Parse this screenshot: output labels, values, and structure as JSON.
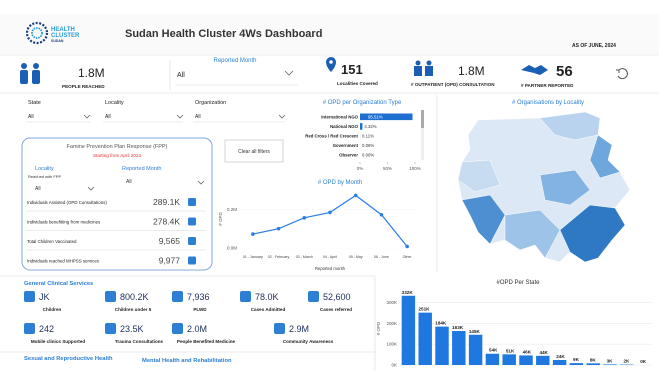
{
  "header": {
    "logo": [
      "HEALTH",
      "CLUSTER",
      "SUDAN"
    ],
    "title": "Sudan Health Cluster 4Ws Dashboard",
    "as_of": "AS OF JUNE, 2024"
  },
  "kpis": {
    "people_reached": {
      "value": "1.8M",
      "label": "PEOPLE REACHED"
    },
    "month_filter": {
      "label": "Reported Month",
      "value": "All"
    },
    "localities": {
      "value": "151",
      "label": "Localities Covered"
    },
    "opd": {
      "value": "1.8M",
      "label": "# OUTPATIENT (OPD) CONSULTATION"
    },
    "partners": {
      "value": "56",
      "label": "# PARTNER REPORTED"
    }
  },
  "filters": [
    {
      "label": "State",
      "value": "All"
    },
    {
      "label": "Locality",
      "value": "All"
    },
    {
      "label": "Organization",
      "value": "All"
    }
  ],
  "map": {
    "title": "# Organisations by Locality"
  },
  "clear_button": "Clear all filters",
  "fpp": {
    "title": "Famine Prevention Plan Response (FPP)",
    "subtitle": "Starting from April 2024",
    "locality_label": "Locality",
    "locality_sub": "Reached with FPP",
    "locality_value": "All",
    "month_label": "Reported Month",
    "month_value": "All",
    "rows": [
      {
        "label": "Individuals Assisted (OPD Consultations)",
        "value": "289.1K"
      },
      {
        "label": "Individuals benefitting from medicines",
        "value": "278.4K"
      },
      {
        "label": "Total Children Vaccinated",
        "value": "9,565"
      },
      {
        "label": "Individuals reached MHPSS services",
        "value": "9,977"
      }
    ]
  },
  "services": {
    "title": "General Clinical Services",
    "items": [
      {
        "value": "JK",
        "label": "Children"
      },
      {
        "value": "800.2K",
        "label": "Children under 5"
      },
      {
        "value": "7,936",
        "label": "PLWD"
      },
      {
        "value": "78.0K",
        "label": "Cases Admitted"
      },
      {
        "value": "52,600",
        "label": "Cases referred"
      },
      {
        "value": "242",
        "label": "Mobile clinics Supported"
      },
      {
        "value": "23.5K",
        "label": "Trauma Consultations"
      },
      {
        "value": "2.0M",
        "label": "People Benefited Medicine"
      },
      {
        "value": "2.9M",
        "label": "Community Awareness"
      }
    ]
  },
  "sections": [
    "Sexual and Reproductive Health",
    "Mental Health and Rehabilitation"
  ],
  "chart_data": [
    {
      "type": "bar",
      "orientation": "horizontal",
      "title": "# OPD per Organization Type",
      "categories": [
        "International NGO",
        "National NGO",
        "Red Cross / Red Crescent",
        "Government",
        "Observer"
      ],
      "values": [
        95.51,
        4.32,
        0.11,
        0.06,
        0
      ],
      "value_labels": [
        "95.51%",
        "4.32%",
        "0.11%",
        "0.06%",
        "0.00%"
      ],
      "color": "#1f6fd1",
      "xlim": [
        0,
        100
      ],
      "xticks": [
        {
          "value": 0,
          "label": "0%"
        },
        {
          "value": 50,
          "label": "50%"
        },
        {
          "value": 100,
          "label": "100%"
        }
      ]
    },
    {
      "type": "line",
      "title": "# OPD by Month",
      "categories": [
        "01 - January",
        "02 - February",
        "03 - March",
        "04 - April",
        "05 - May",
        "06 - June",
        "Other"
      ],
      "values": [
        72000,
        100000,
        156000,
        184000,
        272000,
        172000,
        8000
      ],
      "color": "#2b7de9",
      "ylabel": "# OPD",
      "xlabel": "Reported month",
      "ylim": [
        0,
        300000
      ],
      "yticks": [
        {
          "value": 0,
          "label": "0.0M"
        },
        {
          "value": 200000,
          "label": "0.2M"
        }
      ]
    },
    {
      "type": "bar",
      "title": "#OPD Per State",
      "ylabel": "# OPD",
      "categories": [
        null,
        null,
        null,
        null,
        null,
        null,
        null,
        null,
        null,
        null,
        null,
        null,
        null,
        null,
        null
      ],
      "values": [
        332000,
        251000,
        184000,
        163000,
        145000,
        54000,
        51000,
        46000,
        44000,
        24000,
        9000,
        8000,
        3000,
        2000,
        0
      ],
      "value_labels": [
        "332K",
        "251K",
        "184K",
        "163K",
        "145K",
        "54K",
        "51K",
        "46K",
        "44K",
        "24K",
        "9K",
        "8K",
        "3K",
        "2K",
        "0K"
      ],
      "color": "#1f77e0",
      "ylim": [
        0,
        350000
      ],
      "grid": true,
      "yticks": [
        {
          "value": 0,
          "label": "0K"
        },
        {
          "value": 100000,
          "label": "100K"
        },
        {
          "value": 200000,
          "label": "200K"
        },
        {
          "value": 300000,
          "label": "300K"
        }
      ]
    }
  ]
}
